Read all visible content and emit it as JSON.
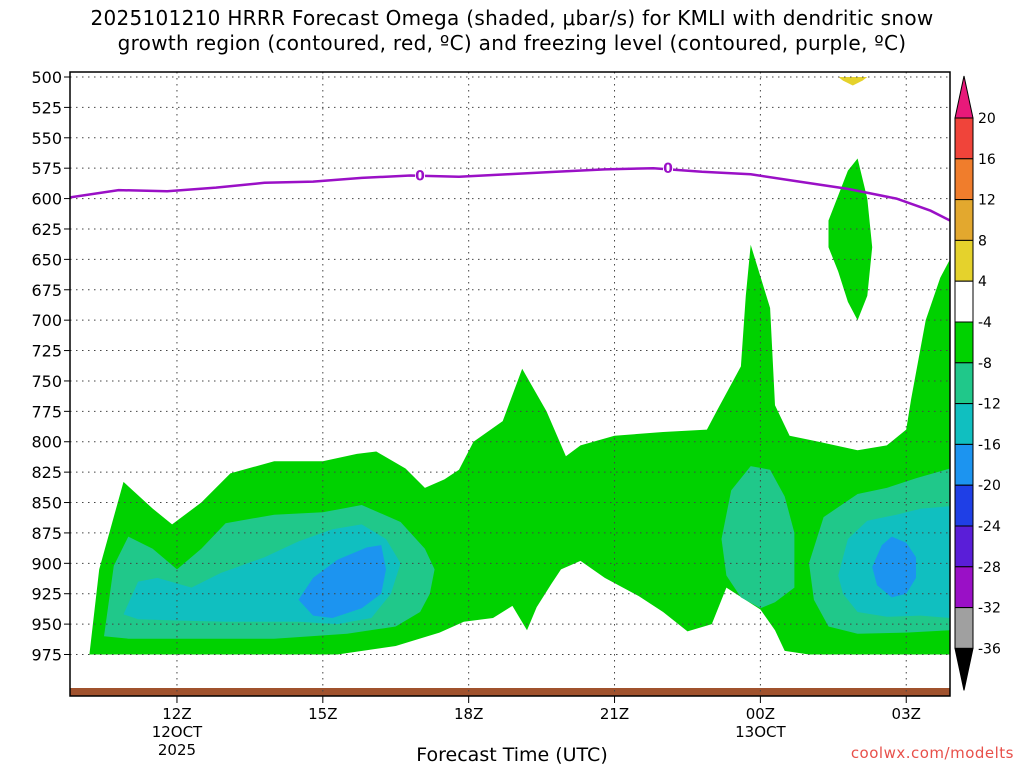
{
  "title": {
    "line1": "2025101210 HRRR Forecast Omega (shaded, μbar/s) for KMLI with dendritic snow",
    "line2": "growth region (contoured, red, ºC) and freezing level (contoured, purple, ºC)"
  },
  "credit": "coolwx.com/modelts",
  "chart_data": {
    "type": "contour",
    "xlabel": "Forecast Time (UTC)",
    "ylabel": "",
    "x_range_hours": [
      9.8,
      27.9
    ],
    "y_axis": {
      "ticks": [
        500,
        525,
        550,
        575,
        600,
        625,
        650,
        675,
        700,
        725,
        750,
        775,
        800,
        825,
        850,
        875,
        900,
        925,
        950,
        975
      ],
      "reversed": true,
      "unit": "hPa"
    },
    "x_ticks": [
      {
        "hour": 12,
        "label": "12Z",
        "sub1": "12OCT",
        "sub2": "2025"
      },
      {
        "hour": 15,
        "label": "15Z",
        "sub1": "",
        "sub2": ""
      },
      {
        "hour": 18,
        "label": "18Z",
        "sub1": "",
        "sub2": ""
      },
      {
        "hour": 21,
        "label": "21Z",
        "sub1": "",
        "sub2": ""
      },
      {
        "hour": 24,
        "label": "00Z",
        "sub1": "13OCT",
        "sub2": ""
      },
      {
        "hour": 27,
        "label": "03Z",
        "sub1": "",
        "sub2": ""
      }
    ],
    "grid": true,
    "colorbar": {
      "levels": [
        20,
        16,
        12,
        8,
        4,
        -4,
        -8,
        -12,
        -16,
        -20,
        -24,
        -28,
        -32,
        -36
      ],
      "colors": [
        "#e8197a",
        "#f0443a",
        "#f07d2c",
        "#e3a82e",
        "#e5d22c",
        "#ffffff",
        "#00d200",
        "#20c88a",
        "#10bfc0",
        "#1c94f0",
        "#1f3fe6",
        "#5a1ed8",
        "#9a10c6",
        "#a0a0a0",
        "#000000"
      ]
    },
    "freezing_level": {
      "contour_label": "0",
      "color": "#9a10c6",
      "points": [
        [
          9.8,
          599
        ],
        [
          10.8,
          593
        ],
        [
          11.8,
          594
        ],
        [
          12.8,
          591
        ],
        [
          13.8,
          587
        ],
        [
          14.8,
          586
        ],
        [
          15.8,
          583
        ],
        [
          16.8,
          581
        ],
        [
          17.8,
          582
        ],
        [
          18.8,
          580
        ],
        [
          19.8,
          578
        ],
        [
          20.8,
          576
        ],
        [
          21.8,
          575
        ],
        [
          22.8,
          578
        ],
        [
          23.8,
          580
        ],
        [
          24.8,
          586
        ],
        [
          25.8,
          592
        ],
        [
          26.8,
          600
        ],
        [
          27.5,
          610
        ],
        [
          27.9,
          618
        ]
      ]
    },
    "ground_color": "#a0522d",
    "omega_regions": [
      {
        "min_value": -8,
        "color": "#00d200",
        "points": [
          [
            10.2,
            975
          ],
          [
            10.4,
            905
          ],
          [
            10.9,
            833
          ],
          [
            11.5,
            855
          ],
          [
            11.9,
            868
          ],
          [
            12.5,
            850
          ],
          [
            13.1,
            826
          ],
          [
            14.0,
            816
          ],
          [
            15.0,
            816
          ],
          [
            15.7,
            810
          ],
          [
            16.1,
            808
          ],
          [
            16.7,
            822
          ],
          [
            17.1,
            838
          ],
          [
            17.5,
            831
          ],
          [
            17.8,
            823
          ],
          [
            18.1,
            800
          ],
          [
            18.7,
            783
          ],
          [
            19.1,
            740
          ],
          [
            19.6,
            775
          ],
          [
            20.0,
            812
          ],
          [
            20.3,
            803
          ],
          [
            21.0,
            795
          ],
          [
            22.0,
            792
          ],
          [
            22.9,
            790
          ],
          [
            23.1,
            775
          ],
          [
            23.6,
            738
          ],
          [
            23.7,
            680
          ],
          [
            23.8,
            638
          ],
          [
            24.2,
            690
          ],
          [
            24.3,
            770
          ],
          [
            24.6,
            795
          ],
          [
            25.2,
            800
          ],
          [
            26.0,
            807
          ],
          [
            26.6,
            803
          ],
          [
            27.0,
            790
          ],
          [
            27.1,
            765
          ],
          [
            27.4,
            700
          ],
          [
            27.7,
            665
          ],
          [
            27.9,
            650
          ],
          [
            27.9,
            975
          ],
          [
            25.0,
            975
          ],
          [
            24.5,
            972
          ],
          [
            24.3,
            955
          ],
          [
            24.0,
            938
          ],
          [
            23.3,
            920
          ],
          [
            23.0,
            950
          ],
          [
            22.5,
            956
          ],
          [
            22.0,
            940
          ],
          [
            21.5,
            927
          ],
          [
            20.8,
            912
          ],
          [
            20.3,
            898
          ],
          [
            19.9,
            905
          ],
          [
            19.7,
            917
          ],
          [
            19.4,
            936
          ],
          [
            19.2,
            955
          ],
          [
            18.9,
            935
          ],
          [
            18.5,
            945
          ],
          [
            17.9,
            948
          ],
          [
            17.4,
            957
          ],
          [
            16.5,
            968
          ],
          [
            15.3,
            975
          ],
          [
            14.0,
            975
          ],
          [
            12.0,
            975
          ]
        ]
      },
      {
        "min_value": -8,
        "color": "#00d200",
        "points": [
          [
            25.4,
            618
          ],
          [
            25.8,
            577
          ],
          [
            26.0,
            567
          ],
          [
            26.2,
            600
          ],
          [
            26.3,
            640
          ],
          [
            26.2,
            680
          ],
          [
            26.0,
            700
          ],
          [
            25.8,
            685
          ],
          [
            25.6,
            660
          ],
          [
            25.4,
            640
          ]
        ]
      },
      {
        "min_value": -12,
        "color": "#20c88a",
        "points": [
          [
            10.5,
            960
          ],
          [
            10.7,
            902
          ],
          [
            11.0,
            878
          ],
          [
            11.5,
            888
          ],
          [
            12.0,
            905
          ],
          [
            12.5,
            888
          ],
          [
            13.0,
            867
          ],
          [
            14.0,
            860
          ],
          [
            15.0,
            858
          ],
          [
            15.8,
            852
          ],
          [
            16.6,
            866
          ],
          [
            17.1,
            888
          ],
          [
            17.3,
            905
          ],
          [
            17.2,
            925
          ],
          [
            17.0,
            940
          ],
          [
            16.5,
            952
          ],
          [
            15.5,
            958
          ],
          [
            14.0,
            962
          ],
          [
            12.0,
            962
          ],
          [
            11.0,
            962
          ]
        ]
      },
      {
        "min_value": -12,
        "color": "#20c88a",
        "points": [
          [
            23.2,
            880
          ],
          [
            23.4,
            840
          ],
          [
            23.8,
            820
          ],
          [
            24.2,
            823
          ],
          [
            24.5,
            845
          ],
          [
            24.7,
            875
          ],
          [
            24.7,
            920
          ],
          [
            24.3,
            932
          ],
          [
            24.0,
            937
          ],
          [
            23.6,
            928
          ],
          [
            23.3,
            910
          ]
        ]
      },
      {
        "min_value": -12,
        "color": "#20c88a",
        "points": [
          [
            25.0,
            900
          ],
          [
            25.3,
            862
          ],
          [
            26.0,
            843
          ],
          [
            26.6,
            838
          ],
          [
            27.2,
            830
          ],
          [
            27.9,
            822
          ],
          [
            27.9,
            955
          ],
          [
            27.0,
            957
          ],
          [
            26.0,
            958
          ],
          [
            25.4,
            952
          ],
          [
            25.1,
            930
          ]
        ]
      },
      {
        "min_value": -16,
        "color": "#10bfc0",
        "points": [
          [
            10.9,
            942
          ],
          [
            11.2,
            915
          ],
          [
            11.6,
            912
          ],
          [
            12.3,
            920
          ],
          [
            12.9,
            908
          ],
          [
            13.8,
            895
          ],
          [
            14.5,
            882
          ],
          [
            15.2,
            872
          ],
          [
            15.8,
            868
          ],
          [
            16.3,
            880
          ],
          [
            16.6,
            900
          ],
          [
            16.4,
            925
          ],
          [
            16.0,
            945
          ],
          [
            15.3,
            950
          ],
          [
            14.5,
            948
          ],
          [
            13.0,
            948
          ],
          [
            12.0,
            947
          ],
          [
            11.2,
            946
          ]
        ]
      },
      {
        "min_value": -16,
        "color": "#10bfc0",
        "points": [
          [
            25.6,
            910
          ],
          [
            25.8,
            880
          ],
          [
            26.2,
            865
          ],
          [
            26.8,
            860
          ],
          [
            27.3,
            855
          ],
          [
            27.9,
            853
          ],
          [
            27.9,
            945
          ],
          [
            27.3,
            943
          ],
          [
            26.6,
            944
          ],
          [
            26.0,
            940
          ],
          [
            25.7,
            925
          ]
        ]
      },
      {
        "min_value": -20,
        "color": "#1c94f0",
        "points": [
          [
            14.5,
            930
          ],
          [
            14.8,
            912
          ],
          [
            15.3,
            897
          ],
          [
            15.9,
            887
          ],
          [
            16.2,
            885
          ],
          [
            16.3,
            905
          ],
          [
            16.2,
            925
          ],
          [
            15.8,
            937
          ],
          [
            15.2,
            945
          ],
          [
            14.8,
            943
          ]
        ]
      },
      {
        "min_value": -20,
        "color": "#1c94f0",
        "points": [
          [
            26.3,
            903
          ],
          [
            26.5,
            885
          ],
          [
            26.7,
            878
          ],
          [
            27.0,
            883
          ],
          [
            27.2,
            895
          ],
          [
            27.2,
            912
          ],
          [
            27.0,
            925
          ],
          [
            26.7,
            928
          ],
          [
            26.4,
            918
          ]
        ]
      },
      {
        "min_value": 4,
        "color": "#e5d22c",
        "points": [
          [
            25.7,
            503
          ],
          [
            25.9,
            507
          ],
          [
            26.1,
            503
          ],
          [
            26.2,
            500
          ],
          [
            25.6,
            500
          ]
        ]
      }
    ]
  }
}
